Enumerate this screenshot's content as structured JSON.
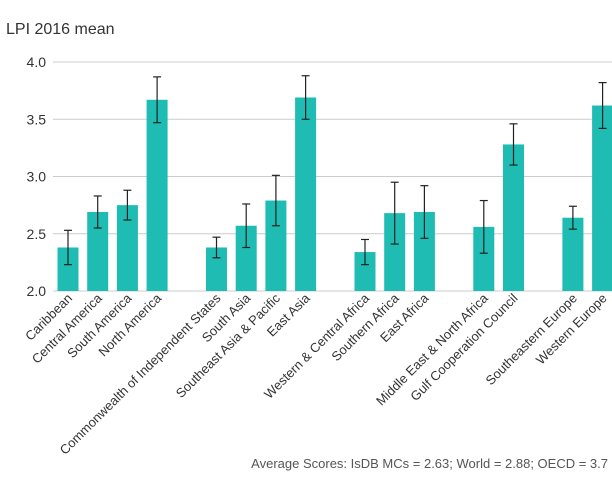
{
  "chart_data": {
    "type": "bar",
    "title": "LPI 2016 mean",
    "note": "Average Scores: IsDB MCs = 2.63; World = 2.88; OECD = 3.7",
    "categories": [
      "Caribbean",
      "Central America",
      "South America",
      "North America",
      null,
      "Commonwealth of Independent States",
      "South Asia",
      "Southeast Asia & Pacific",
      "East Asia",
      null,
      "Western & Central Africa",
      "Southern Africa",
      "East Africa",
      null,
      "Middle East & North Africa",
      "Gulf Cooperation Council",
      null,
      "Southeastern Europe",
      "Western Europe"
    ],
    "values": [
      2.38,
      2.69,
      2.75,
      3.67,
      null,
      2.38,
      2.57,
      2.79,
      3.69,
      null,
      2.34,
      2.68,
      2.69,
      null,
      2.56,
      3.28,
      null,
      2.64,
      3.62
    ],
    "errors": [
      0.15,
      0.14,
      0.13,
      0.2,
      null,
      0.09,
      0.19,
      0.22,
      0.19,
      null,
      0.11,
      0.27,
      0.23,
      null,
      0.23,
      0.18,
      null,
      0.1,
      0.2
    ],
    "color": "#1fbcb3",
    "ylim": [
      2.0,
      4.0
    ],
    "yticks": [
      {
        "value": 2.0,
        "label": "2.0"
      },
      {
        "value": 2.5,
        "label": "2.5"
      },
      {
        "value": 3.0,
        "label": "3.0"
      },
      {
        "value": 3.5,
        "label": "3.5"
      },
      {
        "value": 4.0,
        "label": "4.0"
      }
    ],
    "grid": true
  }
}
